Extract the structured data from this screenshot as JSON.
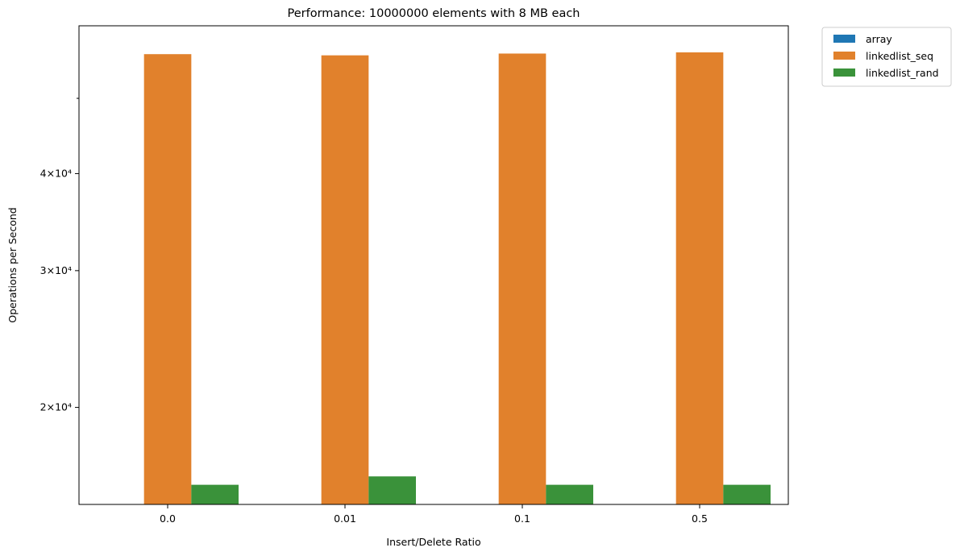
{
  "chart_data": {
    "type": "bar",
    "title": "Performance: 10000000 elements with 8 MB each",
    "xlabel": "Insert/Delete Ratio",
    "ylabel": "Operations per Second",
    "yscale": "log",
    "ylim": [
      15000,
      62000
    ],
    "categories": [
      "0.0",
      "0.01",
      "0.1",
      "0.5"
    ],
    "yticks": [
      {
        "value": 20000,
        "label": "2×10⁴"
      },
      {
        "value": 30000,
        "label": "3×10⁴"
      },
      {
        "value": 40000,
        "label": "4×10⁴"
      }
    ],
    "minor_yticks": [
      50000
    ],
    "series": [
      {
        "name": "array",
        "color": "#1f77b4",
        "values": [
          null,
          null,
          null,
          null
        ]
      },
      {
        "name": "linkedlist_seq",
        "color": "#e1812c",
        "values": [
          57000,
          56800,
          57100,
          57300
        ]
      },
      {
        "name": "linkedlist_rand",
        "color": "#3a923a",
        "values": [
          15900,
          16300,
          15900,
          15900
        ]
      }
    ],
    "legend": "outside-top-right",
    "grid": false
  }
}
